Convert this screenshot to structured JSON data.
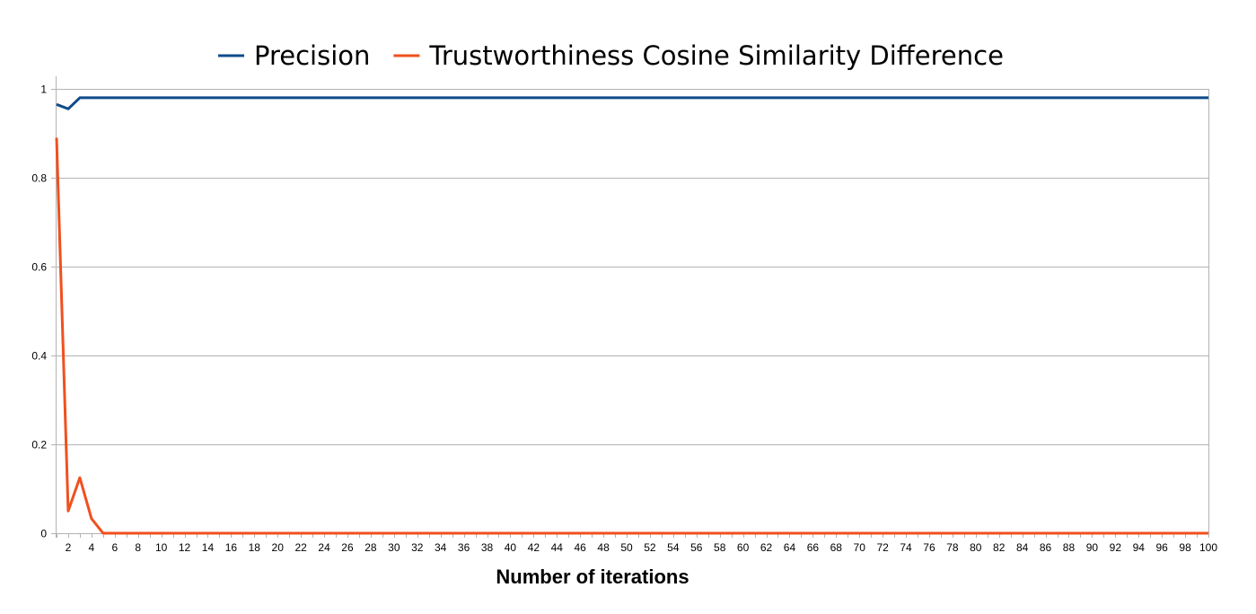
{
  "chart_data": {
    "type": "line",
    "title": "",
    "xlabel": "Number of iterations",
    "ylabel": "",
    "xlim": [
      1,
      100
    ],
    "ylim": [
      0,
      1
    ],
    "y_ticks": [
      0,
      0.2,
      0.4,
      0.6,
      0.8,
      1
    ],
    "y_tick_labels": [
      "0",
      "0.2",
      "0.4",
      "0.6",
      "0.8",
      "1"
    ],
    "x_tick_step": 2,
    "grid": "horizontal",
    "legend_position": "top-center",
    "series": [
      {
        "name": "Precision",
        "color": "#0e4b8a",
        "x": [
          1,
          2,
          3,
          100
        ],
        "y": [
          0.965,
          0.955,
          0.98,
          0.98
        ]
      },
      {
        "name": "Trustworthiness Cosine Similarity Difference",
        "color": "#f0501e",
        "x": [
          1,
          2,
          3,
          4,
          5,
          100
        ],
        "y": [
          0.89,
          0.05,
          0.125,
          0.033,
          0,
          0
        ]
      }
    ]
  }
}
